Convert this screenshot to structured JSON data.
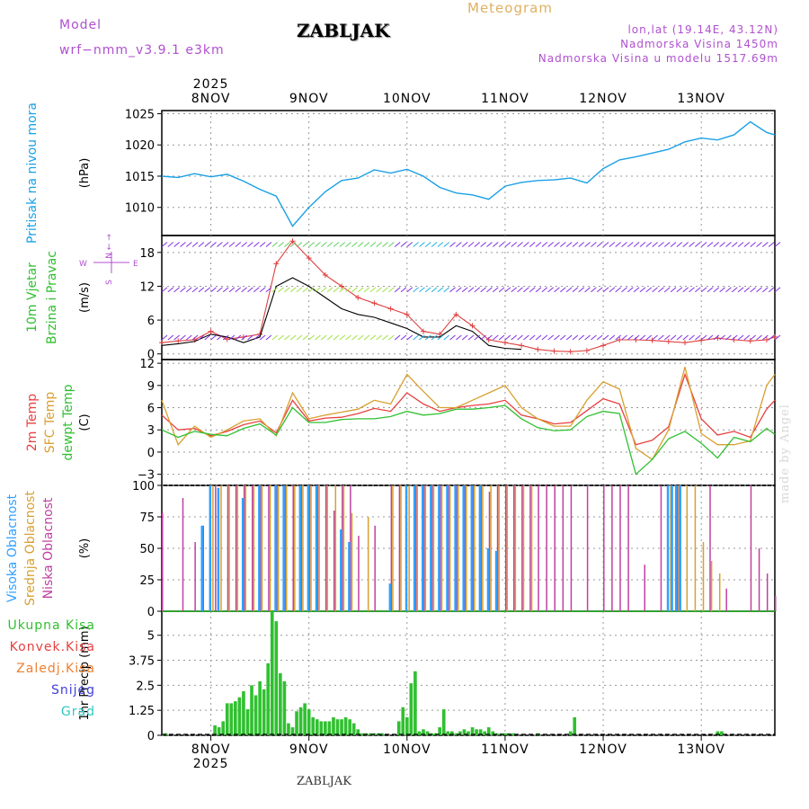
{
  "header": {
    "model_label": "Model",
    "model_name": "wrf−nmm_v3.9.1  e3km",
    "title": "ZABLJAK",
    "meteogram": "Meteogram",
    "lonlat": "lon,lat (19.14E, 43.12N)",
    "altitude": "Nadmorska Visina 1450m",
    "model_altitude": "Nadmorska Visina u modelu 1517.69m",
    "footer": "ZABLJAK",
    "credit": "made by Angel",
    "year_top": "2025",
    "year_bottom": "2025"
  },
  "colors": {
    "pressure": "#1aa0e6",
    "wind": "#000000",
    "wind_gust": "#e04040",
    "temp2m": "#e84040",
    "sfc": "#d8a030",
    "dewpt": "#30c030",
    "high_cloud": "#30a0ff",
    "mid_cloud": "#d8a030",
    "low_cloud": "#c040a0",
    "precip": "#30c030",
    "legend_green": "#30c030",
    "legend_red": "#e84040",
    "legend_orange": "#f08030",
    "legend_blue": "#4040e0",
    "legend_teal": "#30c8c0",
    "legend_purple": "#b050d0"
  },
  "chart_data": [
    {
      "id": "pressure",
      "type": "line",
      "ylabel": "(hPa)",
      "side_labels": [
        "Pritisak na nivou mora"
      ],
      "yticks": [
        1010,
        1015,
        1020,
        1025
      ],
      "ylim": [
        1005.5,
        1025.5
      ],
      "x_hours": [
        0,
        4,
        8,
        12,
        16,
        20,
        24,
        28,
        32,
        36,
        40,
        44,
        48,
        52,
        56,
        60,
        64,
        68,
        72,
        76,
        80,
        84,
        88,
        92,
        96,
        100,
        104,
        108,
        112,
        116,
        120,
        124,
        128,
        132,
        136,
        140,
        144,
        148,
        150
      ],
      "values": [
        1015,
        1014.8,
        1015.4,
        1014.9,
        1015.3,
        1014.2,
        1012.9,
        1011.8,
        1007,
        1010,
        1012.5,
        1014.3,
        1014.7,
        1016,
        1015.5,
        1016.1,
        1015,
        1013.2,
        1012.3,
        1012,
        1011.3,
        1013.4,
        1014,
        1014.3,
        1014.4,
        1014.7,
        1013.9,
        1016.2,
        1017.6,
        1018.1,
        1018.7,
        1019.3,
        1020.5,
        1021.1,
        1020.8,
        1021.6,
        1023.7,
        1022,
        1021.6
      ]
    },
    {
      "id": "wind",
      "type": "line",
      "ylabel": "(m/s)",
      "side_labels": [
        "10m Vjetar",
        "Brzina i Pravac"
      ],
      "compass": {
        "n": "N",
        "w": "W",
        "e": "E",
        "s": "S"
      },
      "yticks": [
        0,
        6,
        12,
        18
      ],
      "ylim": [
        -1,
        21
      ],
      "series": [
        {
          "name": "wind_speed",
          "x_hours": [
            0,
            4,
            8,
            12,
            16,
            20,
            24,
            28,
            32,
            36,
            40,
            44,
            48,
            52,
            56,
            60,
            64,
            68,
            72,
            76,
            80,
            84,
            88
          ],
          "values": [
            1.5,
            1.8,
            2.2,
            3.5,
            3,
            2,
            3,
            12,
            13.5,
            12,
            10,
            8,
            7,
            6.5,
            5.5,
            4.5,
            3,
            3,
            5,
            4,
            1.5,
            1,
            0.8
          ]
        },
        {
          "name": "wind_gust",
          "x_hours": [
            0,
            4,
            8,
            12,
            16,
            20,
            24,
            28,
            32,
            36,
            40,
            44,
            48,
            52,
            56,
            60,
            64,
            68,
            72,
            76,
            80,
            84,
            88,
            92,
            96,
            100,
            104,
            108,
            112,
            116,
            120,
            124,
            128,
            132,
            136,
            140,
            144,
            148,
            150
          ],
          "values": [
            2,
            2.3,
            2.5,
            4,
            2.6,
            3,
            3.5,
            16,
            20,
            17,
            14,
            12,
            10,
            9,
            8,
            7,
            4,
            3.5,
            7,
            5,
            2.5,
            2,
            1.5,
            0.8,
            0.5,
            0.4,
            0.6,
            1.5,
            2.5,
            2.5,
            2.4,
            2.2,
            2,
            2.4,
            2.8,
            2.5,
            2.3,
            2.5,
            3
          ]
        }
      ]
    },
    {
      "id": "temperature",
      "type": "line",
      "ylabel": "(C)",
      "side_labels": [
        "2m Temp",
        "SFC Temp",
        "dewpt Temp"
      ],
      "yticks": [
        -3,
        0,
        3,
        6,
        9,
        12
      ],
      "ylim": [
        -4.5,
        12.5
      ],
      "x_hours": [
        0,
        4,
        8,
        12,
        16,
        20,
        24,
        28,
        32,
        36,
        40,
        44,
        48,
        52,
        56,
        60,
        64,
        68,
        72,
        76,
        80,
        84,
        88,
        92,
        96,
        100,
        104,
        108,
        112,
        116,
        120,
        124,
        128,
        132,
        136,
        140,
        144,
        148,
        150
      ],
      "series": [
        {
          "name": "2m Temp",
          "values": [
            5,
            3,
            3.2,
            2.2,
            2.8,
            3.7,
            4.2,
            2.6,
            7,
            4.2,
            4.6,
            4.7,
            5.2,
            5.9,
            5.5,
            8,
            6.5,
            5.5,
            6,
            6.3,
            6.5,
            7,
            5,
            4.5,
            3.8,
            4,
            5.6,
            7.2,
            6.5,
            1,
            1.6,
            3.4,
            10.5,
            4.5,
            2.3,
            2.8,
            2,
            5.8,
            7
          ]
        },
        {
          "name": "SFC Temp",
          "values": [
            7,
            1,
            3.5,
            2,
            3,
            4.2,
            4.5,
            2.2,
            8,
            4.5,
            5,
            5.4,
            5.8,
            7,
            6.5,
            10.5,
            8.2,
            6,
            6,
            7,
            8,
            9,
            6,
            4.5,
            3.5,
            3.5,
            7,
            9.5,
            8.5,
            0.5,
            -1,
            3,
            11.5,
            2.5,
            1,
            1,
            1.5,
            9,
            10.5
          ]
        },
        {
          "name": "dewpt Temp",
          "values": [
            3,
            2,
            2.8,
            2.4,
            2.2,
            3.2,
            3.8,
            2.3,
            6,
            4,
            4,
            4.4,
            4.5,
            4.5,
            4.8,
            5.5,
            5,
            5.2,
            5.8,
            5.8,
            6,
            6.3,
            4.5,
            3.3,
            2.9,
            3,
            4.8,
            5.5,
            5.2,
            -3,
            -1,
            1.8,
            2.8,
            1.2,
            -0.8,
            2,
            1.4,
            3.2,
            2.4
          ]
        }
      ]
    },
    {
      "id": "cloud",
      "type": "bar",
      "ylabel": "(%)",
      "side_labels": [
        "Visoka Oblacnost",
        "Srednja Oblacnost",
        "Niska Oblacnost"
      ],
      "yticks": [
        0,
        25,
        50,
        75,
        100
      ],
      "ylim": [
        0,
        100
      ],
      "low_bars": {
        "x_hours": [
          0,
          5,
          8,
          10,
          13,
          16,
          18,
          20,
          22,
          24,
          26,
          28,
          30,
          32,
          34,
          36,
          38,
          40,
          42,
          44,
          46,
          48,
          52,
          56,
          58,
          62,
          64,
          66,
          68,
          70,
          72,
          74,
          76,
          78,
          80,
          82,
          84,
          86,
          88,
          90,
          92,
          94,
          96,
          98,
          100,
          104,
          108,
          110,
          112,
          114,
          118,
          122,
          126,
          134,
          138,
          144,
          146,
          148,
          150
        ],
        "values": [
          78,
          90,
          55,
          68,
          100,
          100,
          100,
          100,
          100,
          100,
          100,
          100,
          100,
          100,
          100,
          100,
          100,
          100,
          80,
          100,
          100,
          60,
          68,
          100,
          100,
          100,
          100,
          100,
          100,
          100,
          100,
          100,
          100,
          100,
          95,
          100,
          100,
          100,
          100,
          100,
          100,
          100,
          100,
          100,
          100,
          100,
          100,
          100,
          100,
          100,
          37,
          100,
          100,
          100,
          18,
          100,
          50,
          30,
          12
        ]
      },
      "mid_bars": {
        "x_hours": [
          12,
          14,
          16,
          18,
          20,
          22,
          24,
          26,
          28,
          30,
          32,
          34,
          36,
          38,
          40,
          42,
          44,
          46,
          50,
          56,
          58,
          60,
          62,
          64,
          66,
          68,
          70,
          72,
          74,
          76,
          78,
          80,
          82,
          84,
          86,
          88,
          90,
          124,
          126,
          128,
          130,
          132,
          134,
          136
        ],
        "values": [
          100,
          100,
          100,
          100,
          100,
          100,
          100,
          100,
          100,
          100,
          100,
          100,
          100,
          100,
          100,
          100,
          100,
          78,
          75,
          100,
          100,
          100,
          100,
          100,
          100,
          100,
          100,
          100,
          100,
          100,
          100,
          100,
          100,
          100,
          100,
          100,
          100,
          100,
          100,
          100,
          100,
          55,
          40,
          30
        ]
      },
      "high_bars": {
        "x_hours": [
          10,
          12,
          14,
          20,
          24,
          28,
          30,
          34,
          36,
          38,
          44,
          46,
          56,
          60,
          62,
          64,
          66,
          68,
          70,
          72,
          74,
          76,
          78,
          80,
          82,
          124,
          125,
          126,
          127
        ],
        "values": [
          68,
          100,
          98,
          90,
          100,
          100,
          100,
          100,
          100,
          100,
          65,
          55,
          22,
          100,
          100,
          100,
          100,
          100,
          100,
          100,
          100,
          100,
          100,
          50,
          48,
          100,
          100,
          100,
          100
        ]
      }
    },
    {
      "id": "precip",
      "type": "bar",
      "ylabel": "1hr Precip (mm)",
      "legend": [
        "Ukupna Kisa",
        "Konvek.Kisa",
        "Zaledj.Kisa",
        "Snijeg",
        "Grad"
      ],
      "yticks": [
        0,
        1.25,
        2.5,
        3.75,
        5
      ],
      "ytick_labels": [
        "0",
        "1.25",
        "2.5",
        "3.75",
        "5"
      ],
      "ylim": [
        0,
        6.2
      ],
      "x_hours": [
        1,
        13,
        14,
        15,
        16,
        17,
        18,
        19,
        20,
        21,
        22,
        23,
        24,
        25,
        26,
        27,
        28,
        29,
        30,
        31,
        32,
        33,
        34,
        35,
        36,
        37,
        38,
        39,
        40,
        41,
        42,
        43,
        44,
        45,
        46,
        47,
        48,
        49,
        50,
        51,
        52,
        53,
        54,
        58,
        59,
        60,
        61,
        62,
        63,
        64,
        65,
        66,
        67,
        68,
        69,
        70,
        71,
        72,
        73,
        74,
        75,
        76,
        77,
        78,
        79,
        80,
        81,
        82,
        83,
        84,
        85,
        86,
        92,
        100,
        101,
        136,
        137
      ],
      "values": [
        0.1,
        0.5,
        0.4,
        0.7,
        1.6,
        1.6,
        1.7,
        1.9,
        2.2,
        1.3,
        2.5,
        2,
        2.7,
        2.3,
        3.6,
        6.2,
        5.7,
        3.1,
        2.7,
        0.6,
        0.4,
        1.2,
        1.4,
        1.6,
        1.3,
        0.9,
        0.8,
        0.7,
        0.7,
        0.7,
        0.9,
        0.8,
        0.8,
        0.9,
        0.8,
        0.6,
        0.3,
        0.1,
        0.1,
        0.1,
        0.1,
        0.1,
        0.1,
        0.7,
        1.4,
        0.9,
        2.6,
        3.2,
        0.2,
        0.3,
        0.2,
        0.1,
        0.1,
        0.4,
        1.3,
        0.2,
        0.2,
        0.1,
        0.2,
        0.3,
        0.2,
        0.4,
        0.3,
        0.3,
        0.2,
        0.4,
        0.2,
        0.1,
        0.1,
        0.1,
        0.1,
        0.1,
        0.1,
        0.2,
        0.9,
        0.2,
        0.2
      ]
    }
  ],
  "time_axis": {
    "hours_total": 150,
    "day_labels": [
      "8NOV",
      "9NOV",
      "10NOV",
      "11NOV",
      "12NOV",
      "13NOV"
    ],
    "day_hours": [
      12,
      36,
      60,
      84,
      108,
      132
    ]
  }
}
